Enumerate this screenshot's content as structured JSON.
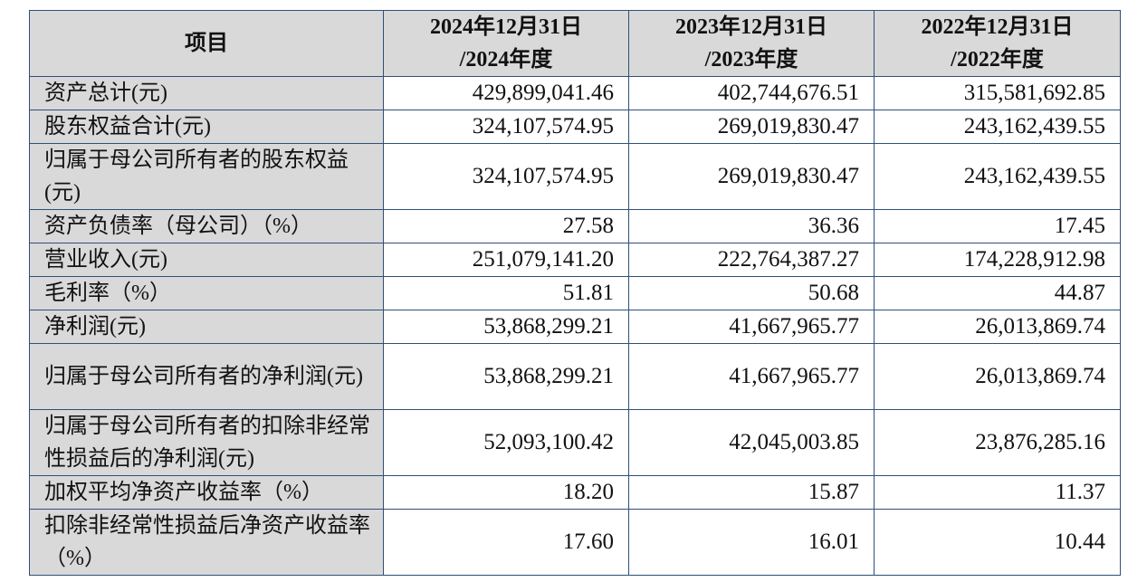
{
  "table": {
    "header": {
      "item": "项目",
      "periods": [
        {
          "line1": "2024年12月31日",
          "line2": "/2024年度"
        },
        {
          "line1": "2023年12月31日",
          "line2": "/2023年度"
        },
        {
          "line1": "2022年12月31日",
          "line2": "/2022年度"
        }
      ]
    },
    "rows": [
      {
        "label": "资产总计(元)",
        "values": [
          "429,899,041.46",
          "402,744,676.51",
          "315,581,692.85"
        ]
      },
      {
        "label": "股东权益合计(元)",
        "values": [
          "324,107,574.95",
          "269,019,830.47",
          "243,162,439.55"
        ]
      },
      {
        "label": "归属于母公司所有者的股东权益(元)",
        "values": [
          "324,107,574.95",
          "269,019,830.47",
          "243,162,439.55"
        ]
      },
      {
        "label": "资产负债率（母公司）（%）",
        "values": [
          "27.58",
          "36.36",
          "17.45"
        ]
      },
      {
        "label": "营业收入(元)",
        "values": [
          "251,079,141.20",
          "222,764,387.27",
          "174,228,912.98"
        ]
      },
      {
        "label": "毛利率（%）",
        "values": [
          "51.81",
          "50.68",
          "44.87"
        ]
      },
      {
        "label": "净利润(元)",
        "values": [
          "53,868,299.21",
          "41,667,965.77",
          "26,013,869.74"
        ]
      },
      {
        "label": "归属于母公司所有者的净利润(元)",
        "values": [
          "53,868,299.21",
          "41,667,965.77",
          "26,013,869.74"
        ]
      },
      {
        "label": "归属于母公司所有者的扣除非经常性损益后的净利润(元)",
        "values": [
          "52,093,100.42",
          "42,045,003.85",
          "23,876,285.16"
        ]
      },
      {
        "label": "加权平均净资产收益率（%）",
        "values": [
          "18.20",
          "15.87",
          "11.37"
        ]
      },
      {
        "label": "扣除非经常性损益后净资产收益率（%）",
        "values": [
          "17.60",
          "16.01",
          "10.44"
        ]
      }
    ]
  }
}
